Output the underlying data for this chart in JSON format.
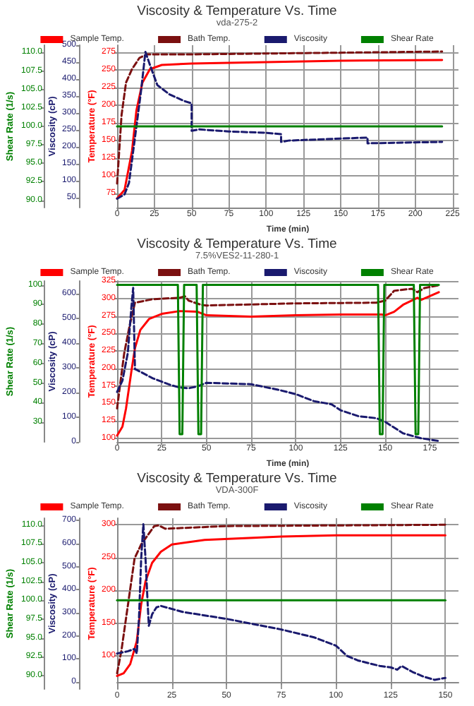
{
  "chart_data": [
    {
      "type": "line",
      "title": "Viscosity & Temperature Vs. Time",
      "subtitle": "vda-275-2",
      "xlabel": "Time (min)",
      "ylabel": "Temperature (°F)",
      "y2label": "Viscosity (cP)",
      "y3label": "Shear Rate (1/s)",
      "xlim": [
        0,
        229
      ],
      "xticks": [
        0,
        25,
        50,
        75,
        100,
        125,
        150,
        175,
        200,
        225
      ],
      "ylim": [
        55,
        285
      ],
      "yticks": [
        75,
        100,
        125,
        150,
        175,
        200,
        225,
        250,
        275
      ],
      "y2lim": [
        20,
        500
      ],
      "y2ticks": [
        50,
        100,
        150,
        200,
        250,
        300,
        350,
        400,
        450,
        500
      ],
      "y3lim": [
        89,
        111
      ],
      "y3ticks": [
        {
          "value": 90,
          "label": "90.0"
        },
        92.5,
        {
          "value": 95,
          "label": "95.0"
        },
        97.5,
        {
          "value": 100,
          "label": "100.0"
        },
        102.5,
        {
          "value": 105,
          "label": "105.0"
        },
        107.5,
        {
          "value": 110,
          "label": "110.0"
        }
      ],
      "grid": true,
      "legend": "top",
      "series": [
        {
          "name": "Sample Temp.",
          "color": "#ff0000",
          "axis": "y",
          "line_style": "solid",
          "x": [
            0,
            5,
            10,
            13,
            17,
            22,
            30,
            50,
            100,
            150,
            218
          ],
          "values": [
            68,
            80,
            135,
            193,
            232,
            251,
            257,
            259,
            261,
            263,
            264
          ]
        },
        {
          "name": "Bath Temp.",
          "color": "#7b1010",
          "axis": "y",
          "line_style": "dashed",
          "x": [
            0,
            3,
            6,
            10,
            15,
            20,
            50,
            218
          ],
          "values": [
            89,
            186,
            232,
            251,
            267,
            272,
            272,
            276
          ]
        },
        {
          "name": "Viscosity",
          "color": "#1a1a6e",
          "axis": "y2",
          "line_style": "dashed",
          "x": [
            0,
            5,
            8,
            12,
            16,
            19,
            22,
            27,
            35,
            45,
            50,
            50,
            55,
            75,
            100,
            110,
            110,
            115,
            150,
            168,
            168,
            218
          ],
          "values": [
            46,
            59,
            93,
            227,
            362,
            480,
            442,
            382,
            355,
            335,
            328,
            247,
            251,
            245,
            241,
            237,
            214,
            218,
            224,
            227,
            210,
            214
          ]
        },
        {
          "name": "Shear Rate",
          "color": "#008000",
          "axis": "y3",
          "line_style": "solid",
          "x": [
            0,
            218
          ],
          "values": [
            100,
            100
          ]
        }
      ]
    },
    {
      "type": "line",
      "title": "Viscosity & Temperature Vs. Time",
      "subtitle": "7.5%VES2-11-280-1",
      "xlabel": "Time (min)",
      "ylabel": "Temperature (°F)",
      "y2label": "Viscosity (cP)",
      "y3label": "Shear Rate (1/s)",
      "xlim": [
        0,
        191
      ],
      "xticks": [
        0,
        25,
        50,
        75,
        100,
        125,
        150,
        175
      ],
      "ylim": [
        95,
        325
      ],
      "yticks": [
        100,
        125,
        150,
        175,
        200,
        225,
        250,
        275,
        300,
        325
      ],
      "y2lim": [
        0,
        650
      ],
      "y2ticks": [
        0,
        100,
        200,
        300,
        400,
        500,
        600
      ],
      "y3lim": [
        20,
        102
      ],
      "y3ticks": [
        30,
        40,
        50,
        60,
        70,
        80,
        90,
        100
      ],
      "grid": true,
      "legend": "top",
      "series": [
        {
          "name": "Sample Temp.",
          "color": "#ff0000",
          "axis": "y",
          "line_style": "solid",
          "x": [
            0,
            3,
            5,
            8,
            10,
            13,
            18,
            25,
            35,
            45,
            50,
            75,
            100,
            125,
            148,
            150,
            155,
            160,
            168,
            170,
            180
          ],
          "values": [
            104,
            117,
            143,
            196,
            229,
            255,
            271,
            278,
            282,
            281,
            276,
            274,
            276,
            277,
            277,
            276,
            281,
            291,
            301,
            298,
            309
          ]
        },
        {
          "name": "Bath Temp.",
          "color": "#7b1010",
          "axis": "y",
          "line_style": "dashed",
          "x": [
            0,
            2,
            4,
            7,
            10,
            20,
            35,
            38,
            40,
            47,
            50,
            100,
            145,
            150,
            155,
            165,
            168,
            172,
            180
          ],
          "values": [
            143,
            183,
            222,
            261,
            294,
            299,
            301,
            303,
            297,
            291,
            290,
            293,
            294,
            297,
            311,
            314,
            309,
            315,
            319
          ]
        },
        {
          "name": "Viscosity",
          "color": "#1a1a6e",
          "axis": "y2",
          "line_style": "dashed",
          "x": [
            0,
            3,
            6,
            8,
            9,
            10,
            11,
            20,
            30,
            35,
            40,
            45,
            50,
            75,
            90,
            100,
            110,
            120,
            125,
            135,
            145,
            150,
            160,
            170,
            180
          ],
          "values": [
            202,
            248,
            359,
            544,
            622,
            294,
            291,
            257,
            230,
            220,
            217,
            224,
            239,
            233,
            211,
            193,
            165,
            152,
            128,
            104,
            96,
            81,
            35,
            15,
            4
          ]
        },
        {
          "name": "Shear Rate",
          "color": "#008000",
          "axis": "y3",
          "line_style": "solid",
          "x": [
            0,
            34,
            35,
            36.5,
            37.5,
            44.5,
            45.5,
            47,
            48,
            146,
            147,
            148.5,
            149.5,
            166,
            167,
            168.5,
            169.5,
            180
          ],
          "values": [
            100,
            100,
            24,
            24,
            100,
            100,
            24,
            24,
            100,
            100,
            24,
            24,
            100,
            100,
            24,
            24,
            100,
            100
          ]
        }
      ]
    },
    {
      "type": "line",
      "title": "Viscosity & Temperature Vs. Time",
      "subtitle": "VDA-300F",
      "ylabel": "Temperature (°F)",
      "y2label": "Viscosity (cP)",
      "y3label": "Shear Rate (1/s)",
      "xlim": [
        0,
        156
      ],
      "xticks": [
        0,
        25,
        50,
        75,
        100,
        125,
        150
      ],
      "ylim": [
        50,
        310
      ],
      "yticks": [
        100,
        150,
        200,
        250,
        300
      ],
      "y2lim": [
        -30,
        710
      ],
      "y2ticks": [
        0,
        100,
        200,
        300,
        400,
        500,
        600,
        700
      ],
      "y3lim": [
        88.2,
        110.9
      ],
      "y3ticks": [
        {
          "value": 90,
          "label": "90.0"
        },
        92.5,
        {
          "value": 95,
          "label": "95.0"
        },
        97.5,
        {
          "value": 100,
          "label": "100.0"
        },
        102.5,
        {
          "value": 105,
          "label": "105.0"
        },
        107.5,
        {
          "value": 110,
          "label": "110.0"
        }
      ],
      "grid": true,
      "legend": "top",
      "series": [
        {
          "name": "Sample Temp.",
          "color": "#ff0000",
          "axis": "y",
          "line_style": "solid",
          "x": [
            0,
            3,
            6,
            9,
            11,
            13,
            16,
            20,
            25,
            40,
            75,
            100,
            150
          ],
          "values": [
            70,
            74,
            88,
            123,
            179,
            214,
            242,
            259,
            270,
            277,
            282,
            284,
            284
          ]
        },
        {
          "name": "Bath Temp.",
          "color": "#7b1010",
          "axis": "y",
          "line_style": "dashed",
          "x": [
            0,
            2,
            5,
            8,
            11,
            14,
            17,
            19,
            22,
            50,
            150
          ],
          "values": [
            74,
            109,
            179,
            249,
            270,
            284,
            298,
            299,
            294,
            298,
            300
          ]
        },
        {
          "name": "Viscosity",
          "color": "#1a1a6e",
          "axis": "y2",
          "line_style": "dashed",
          "x": [
            0,
            5,
            8,
            9,
            10,
            11,
            12,
            13,
            14,
            14.5,
            16,
            18,
            20,
            30,
            50,
            75,
            90,
            100,
            105,
            110,
            120,
            125,
            128,
            130,
            135,
            140,
            145,
            150
          ],
          "values": [
            124,
            134,
            144,
            124,
            274,
            534,
            684,
            534,
            334,
            244,
            294,
            324,
            330,
            304,
            274,
            228,
            194,
            158,
            114,
            94,
            70,
            64,
            54,
            70,
            44,
            24,
            10,
            18
          ]
        },
        {
          "name": "Shear Rate",
          "color": "#008000",
          "axis": "y3",
          "line_style": "solid",
          "x": [
            0,
            150
          ],
          "values": [
            100,
            100
          ]
        }
      ]
    }
  ]
}
